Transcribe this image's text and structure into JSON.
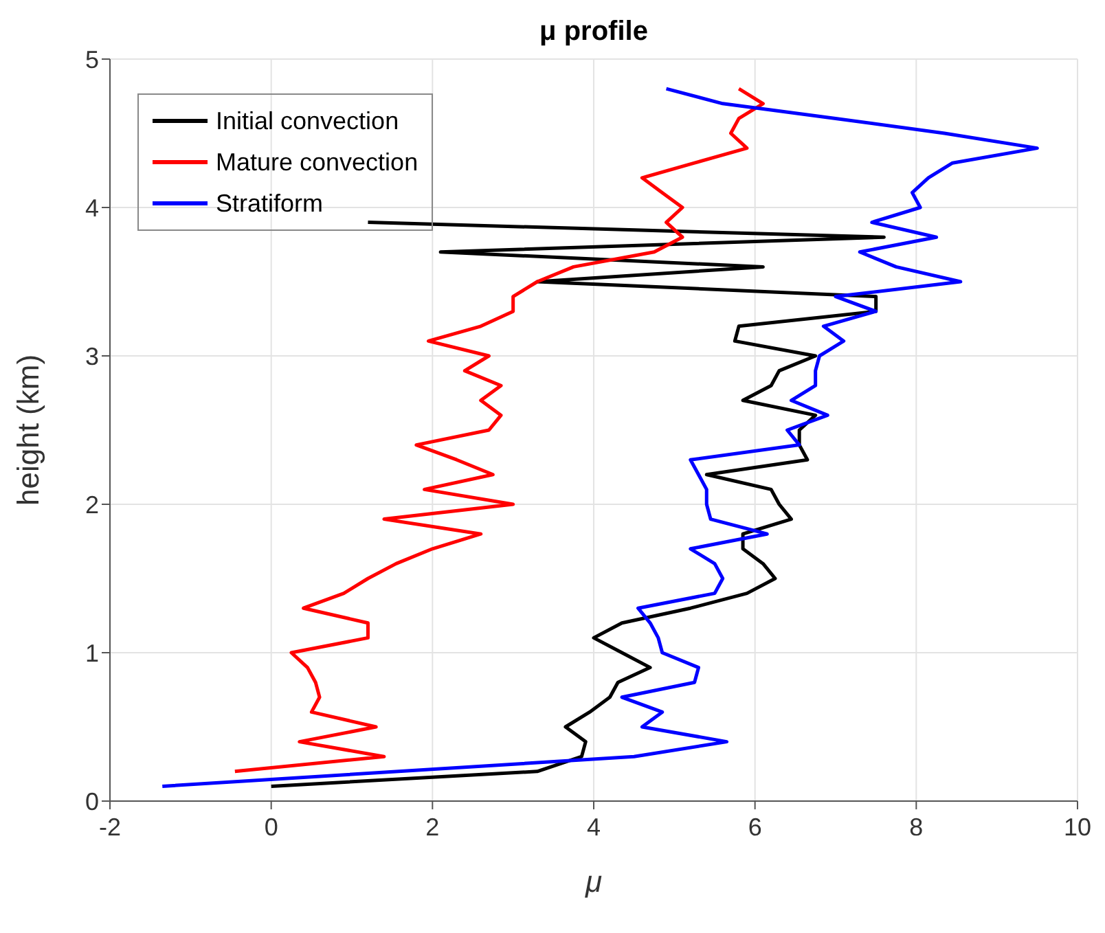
{
  "chart_data": {
    "type": "line",
    "title": "μ profile",
    "xlabel": "μ",
    "ylabel": "height (km)",
    "xlim": [
      -2,
      10
    ],
    "xticks": [
      -2,
      0,
      2,
      4,
      6,
      8,
      10
    ],
    "ylim": [
      0,
      5
    ],
    "yticks": [
      0,
      1,
      2,
      3,
      4,
      5
    ],
    "grid": true,
    "legend": "top left",
    "line_style": "solid",
    "marker": "none",
    "series": [
      {
        "name": "Initial convection",
        "color": "#000000",
        "x": [
          0,
          3.3,
          3.85,
          3.9,
          3.65,
          3.95,
          4.2,
          4.3,
          4.7,
          4.35,
          4.0,
          4.35,
          5.2,
          5.9,
          6.25,
          6.1,
          5.85,
          5.85,
          6.45,
          6.3,
          6.2,
          5.4,
          6.65,
          6.55,
          6.55,
          6.75,
          5.85,
          6.2,
          6.3,
          6.75,
          5.75,
          5.8,
          7.5,
          7.5,
          3.3,
          6.1,
          2.1,
          7.6,
          1.2
        ],
        "values": [
          0.1,
          0.2,
          0.3,
          0.4,
          0.5,
          0.6,
          0.7,
          0.8,
          0.9,
          1.0,
          1.1,
          1.2,
          1.3,
          1.4,
          1.5,
          1.6,
          1.7,
          1.8,
          1.9,
          2.0,
          2.1,
          2.2,
          2.3,
          2.4,
          2.5,
          2.6,
          2.7,
          2.8,
          2.9,
          3.0,
          3.1,
          3.2,
          3.3,
          3.4,
          3.5,
          3.6,
          3.7,
          3.8,
          3.9
        ]
      },
      {
        "name": "Mature convection",
        "color": "#ff0000",
        "x": [
          -0.45,
          1.4,
          0.35,
          1.3,
          0.5,
          0.6,
          0.55,
          0.45,
          0.25,
          1.2,
          1.2,
          0.4,
          0.9,
          1.2,
          1.55,
          2.0,
          2.6,
          1.4,
          3.0,
          1.9,
          2.75,
          2.3,
          1.8,
          2.7,
          2.85,
          2.6,
          2.85,
          2.4,
          2.7,
          1.95,
          2.6,
          3.0,
          3.0,
          3.3,
          3.75,
          4.75,
          5.1,
          4.9,
          5.1,
          4.85,
          4.6,
          5.25,
          5.9,
          5.7,
          5.8,
          6.1,
          5.8
        ],
        "values": [
          0.2,
          0.3,
          0.4,
          0.5,
          0.6,
          0.7,
          0.8,
          0.9,
          1.0,
          1.1,
          1.2,
          1.3,
          1.4,
          1.5,
          1.6,
          1.7,
          1.8,
          1.9,
          2.0,
          2.1,
          2.2,
          2.3,
          2.4,
          2.5,
          2.6,
          2.7,
          2.8,
          2.9,
          3.0,
          3.1,
          3.2,
          3.3,
          3.4,
          3.5,
          3.6,
          3.7,
          3.8,
          3.9,
          4.0,
          4.1,
          4.2,
          4.3,
          4.4,
          4.5,
          4.6,
          4.7,
          4.8
        ]
      },
      {
        "name": "Stratiform",
        "color": "#0000ff",
        "x": [
          -1.35,
          4.5,
          5.65,
          4.6,
          4.85,
          4.35,
          5.25,
          5.3,
          4.85,
          4.8,
          4.7,
          4.55,
          5.5,
          5.6,
          5.5,
          5.2,
          6.15,
          5.45,
          5.4,
          5.4,
          5.3,
          5.2,
          6.55,
          6.4,
          6.9,
          6.45,
          6.75,
          6.75,
          6.8,
          7.1,
          6.85,
          7.5,
          7.0,
          8.55,
          7.75,
          7.3,
          8.25,
          7.45,
          8.05,
          7.95,
          8.15,
          8.45,
          9.5,
          8.35,
          7.0,
          5.6,
          4.9
        ],
        "values": [
          0.1,
          0.3,
          0.4,
          0.5,
          0.6,
          0.7,
          0.8,
          0.9,
          1.0,
          1.1,
          1.2,
          1.3,
          1.4,
          1.5,
          1.6,
          1.7,
          1.8,
          1.9,
          2.0,
          2.1,
          2.2,
          2.3,
          2.4,
          2.5,
          2.6,
          2.7,
          2.8,
          2.9,
          3.0,
          3.1,
          3.2,
          3.3,
          3.4,
          3.5,
          3.6,
          3.7,
          3.8,
          3.9,
          4.0,
          4.1,
          4.2,
          4.3,
          4.4,
          4.5,
          4.6,
          4.7,
          4.8
        ]
      }
    ]
  }
}
